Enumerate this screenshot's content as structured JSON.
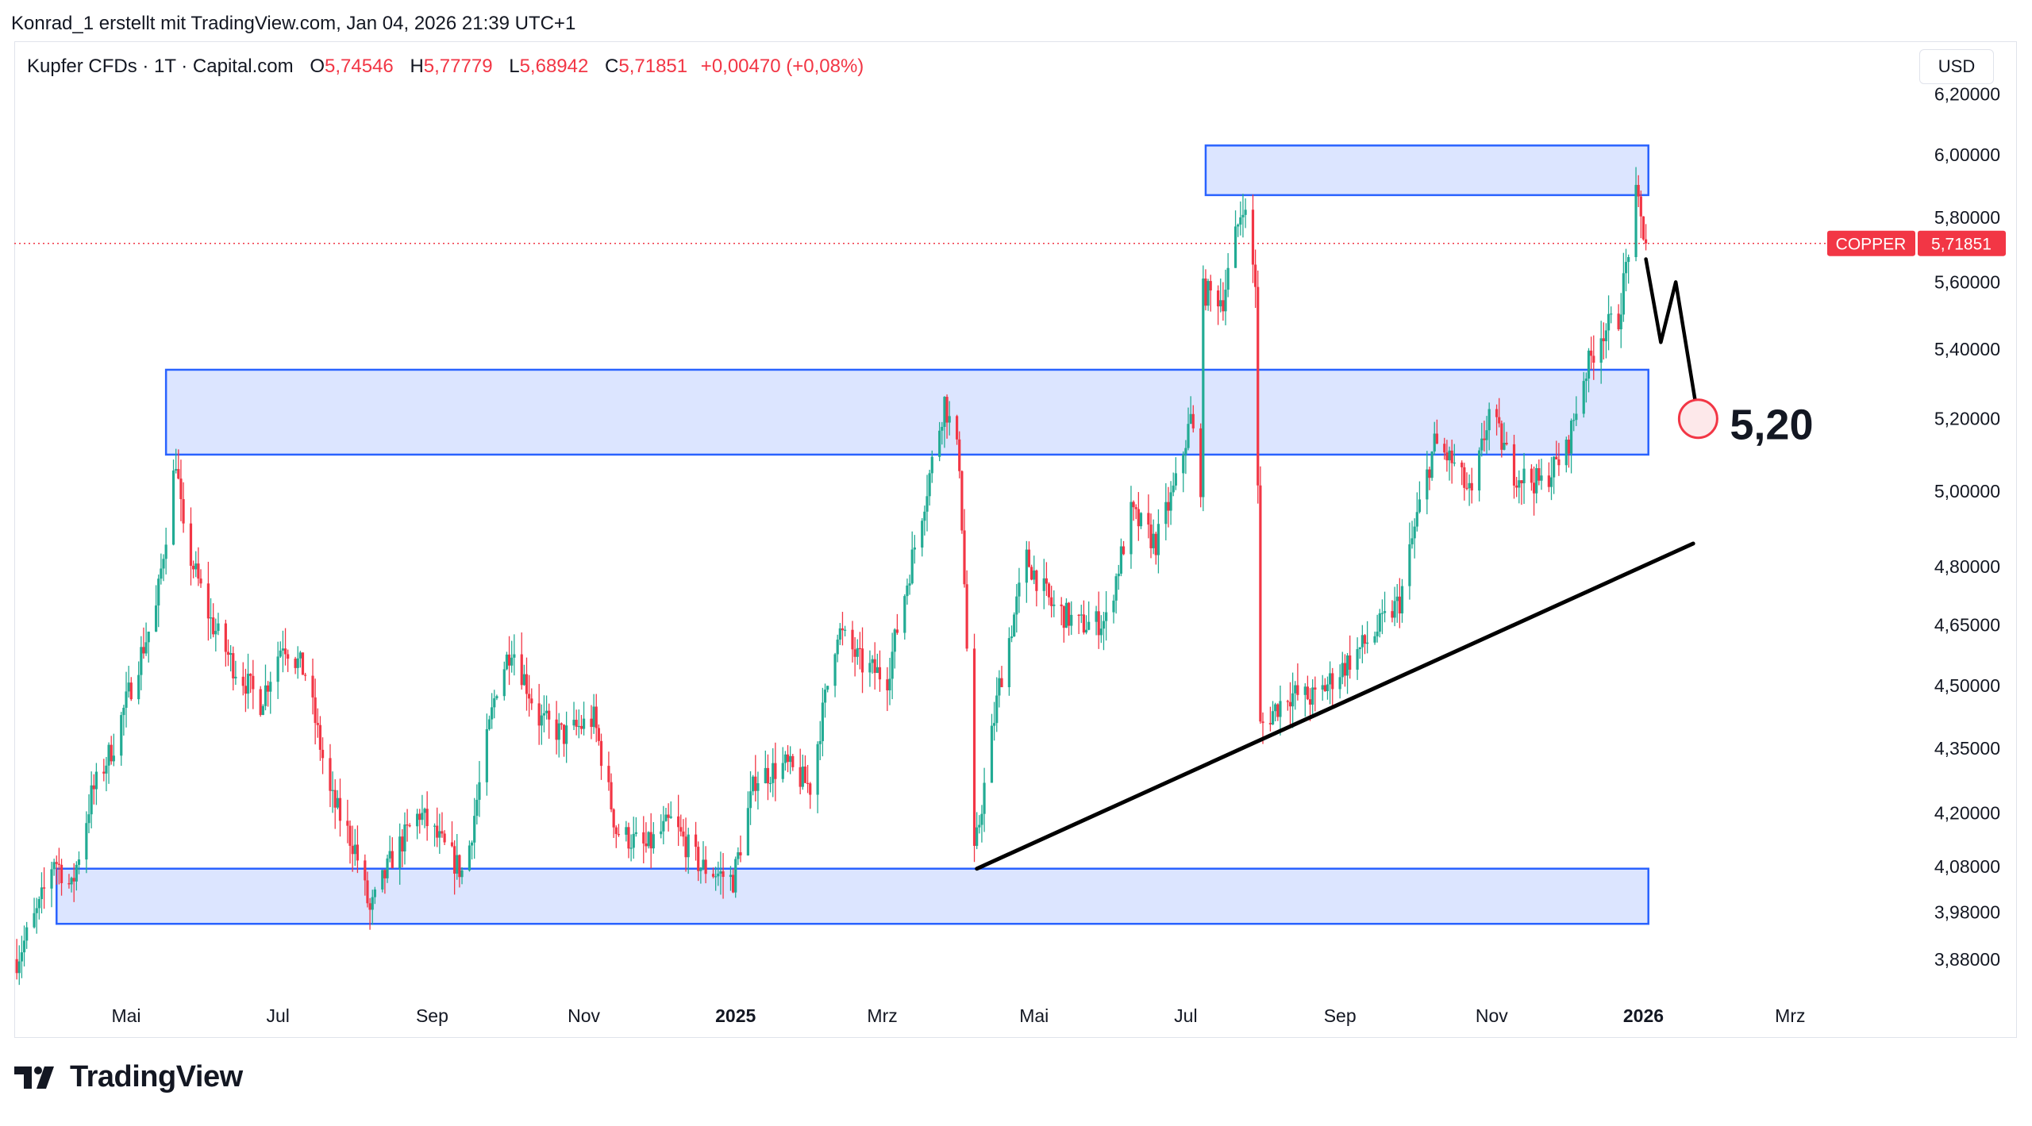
{
  "attribution": "Konrad_1 erstellt mit TradingView.com, Jan 04, 2026 21:39 UTC+1",
  "legend": {
    "symbol": "Kupfer CFDs · 1T · Capital.com",
    "open_label": "O",
    "open": "5,74546",
    "high_label": "H",
    "high": "5,77779",
    "low_label": "L",
    "low": "5,68942",
    "close_label": "C",
    "close": "5,71851",
    "change": "+0,00470 (+0,08%)"
  },
  "currency": "USD",
  "brand": "TradingView",
  "colors": {
    "up": "#22ab94",
    "down": "#f23645",
    "zone_fill": "#d6e0ff",
    "zone_border": "#2962ff",
    "trendline": "#000000"
  },
  "chart_data": {
    "type": "candlestick",
    "series_name": "COPPER",
    "last_price": 5.71851,
    "last_price_label": "5,71851",
    "price_tag_label": "COPPER",
    "y_scale": "log",
    "ylim": [
      3.82,
      6.25
    ],
    "y_ticks": [
      {
        "value": 6.2,
        "label": "6,20000"
      },
      {
        "value": 6.0,
        "label": "6,00000"
      },
      {
        "value": 5.8,
        "label": "5,80000"
      },
      {
        "value": 5.6,
        "label": "5,60000"
      },
      {
        "value": 5.4,
        "label": "5,40000"
      },
      {
        "value": 5.2,
        "label": "5,20000"
      },
      {
        "value": 5.0,
        "label": "5,00000"
      },
      {
        "value": 4.8,
        "label": "4,80000"
      },
      {
        "value": 4.65,
        "label": "4,65000"
      },
      {
        "value": 4.5,
        "label": "4,50000"
      },
      {
        "value": 4.35,
        "label": "4,35000"
      },
      {
        "value": 4.2,
        "label": "4,20000"
      },
      {
        "value": 4.08,
        "label": "4,08000"
      },
      {
        "value": 3.98,
        "label": "3,98000"
      },
      {
        "value": 3.88,
        "label": "3,88000"
      }
    ],
    "xlim": [
      "2024-03-17",
      "2026-04-20"
    ],
    "x_ticks": [
      {
        "date": "2024-05-01",
        "label": "Mai",
        "bold": false
      },
      {
        "date": "2024-07-01",
        "label": "Jul",
        "bold": false
      },
      {
        "date": "2024-09-01",
        "label": "Sep",
        "bold": false
      },
      {
        "date": "2024-11-01",
        "label": "Nov",
        "bold": false
      },
      {
        "date": "2025-01-01",
        "label": "2025",
        "bold": true
      },
      {
        "date": "2025-03-01",
        "label": "Mrz",
        "bold": false
      },
      {
        "date": "2025-05-01",
        "label": "Mai",
        "bold": false
      },
      {
        "date": "2025-07-01",
        "label": "Jul",
        "bold": false
      },
      {
        "date": "2025-09-01",
        "label": "Sep",
        "bold": false
      },
      {
        "date": "2025-11-01",
        "label": "Nov",
        "bold": false
      },
      {
        "date": "2026-01-01",
        "label": "2026",
        "bold": true
      },
      {
        "date": "2026-03-01",
        "label": "Mrz",
        "bold": false
      }
    ],
    "price_path": [
      [
        "2024-03-18",
        3.88
      ],
      [
        "2024-03-27",
        3.99
      ],
      [
        "2024-04-02",
        4.1
      ],
      [
        "2024-04-09",
        4.03
      ],
      [
        "2024-04-17",
        4.24
      ],
      [
        "2024-04-26",
        4.36
      ],
      [
        "2024-05-06",
        4.56
      ],
      [
        "2024-05-13",
        4.69
      ],
      [
        "2024-05-21",
        5.09
      ],
      [
        "2024-05-24",
        4.88
      ],
      [
        "2024-06-04",
        4.66
      ],
      [
        "2024-06-13",
        4.55
      ],
      [
        "2024-06-24",
        4.46
      ],
      [
        "2024-07-03",
        4.61
      ],
      [
        "2024-07-12",
        4.53
      ],
      [
        "2024-07-22",
        4.24
      ],
      [
        "2024-08-01",
        4.12
      ],
      [
        "2024-08-07",
        3.98
      ],
      [
        "2024-08-16",
        4.1
      ],
      [
        "2024-08-27",
        4.2
      ],
      [
        "2024-09-06",
        4.12
      ],
      [
        "2024-09-14",
        4.06
      ],
      [
        "2024-09-27",
        4.5
      ],
      [
        "2024-10-03",
        4.6
      ],
      [
        "2024-10-14",
        4.42
      ],
      [
        "2024-10-24",
        4.38
      ],
      [
        "2024-11-05",
        4.42
      ],
      [
        "2024-11-14",
        4.16
      ],
      [
        "2024-11-26",
        4.12
      ],
      [
        "2024-12-06",
        4.18
      ],
      [
        "2024-12-18",
        4.08
      ],
      [
        "2024-12-31",
        4.05
      ],
      [
        "2025-01-09",
        4.28
      ],
      [
        "2025-01-21",
        4.31
      ],
      [
        "2025-01-31",
        4.26
      ],
      [
        "2025-02-11",
        4.64
      ],
      [
        "2025-02-21",
        4.55
      ],
      [
        "2025-03-03",
        4.52
      ],
      [
        "2025-03-11",
        4.76
      ],
      [
        "2025-03-19",
        5.01
      ],
      [
        "2025-03-26",
        5.25
      ],
      [
        "2025-04-01",
        5.08
      ],
      [
        "2025-04-07",
        4.1
      ],
      [
        "2025-04-17",
        4.5
      ],
      [
        "2025-04-28",
        4.82
      ],
      [
        "2025-05-08",
        4.7
      ],
      [
        "2025-05-19",
        4.65
      ],
      [
        "2025-05-30",
        4.66
      ],
      [
        "2025-06-09",
        4.94
      ],
      [
        "2025-06-19",
        4.86
      ],
      [
        "2025-06-27",
        5.02
      ],
      [
        "2025-07-03",
        5.2
      ],
      [
        "2025-07-07",
        5.02
      ],
      [
        "2025-07-08",
        5.57
      ],
      [
        "2025-07-16",
        5.55
      ],
      [
        "2025-07-24",
        5.85
      ],
      [
        "2025-07-29",
        5.6
      ],
      [
        "2025-07-31",
        4.4
      ],
      [
        "2025-08-11",
        4.48
      ],
      [
        "2025-08-22",
        4.47
      ],
      [
        "2025-09-03",
        4.55
      ],
      [
        "2025-09-15",
        4.63
      ],
      [
        "2025-09-25",
        4.71
      ],
      [
        "2025-10-02",
        4.93
      ],
      [
        "2025-10-09",
        5.13
      ],
      [
        "2025-10-16",
        5.08
      ],
      [
        "2025-10-24",
        4.98
      ],
      [
        "2025-10-31",
        5.22
      ],
      [
        "2025-11-10",
        5.05
      ],
      [
        "2025-11-21",
        5.02
      ],
      [
        "2025-12-01",
        5.11
      ],
      [
        "2025-12-08",
        5.32
      ],
      [
        "2025-12-15",
        5.45
      ],
      [
        "2025-12-22",
        5.49
      ],
      [
        "2025-12-29",
        5.86
      ],
      [
        "2026-01-02",
        5.72
      ]
    ],
    "zones": [
      {
        "from": "2024-04-03",
        "to": "2026-01-03",
        "low": 3.955,
        "high": 4.075
      },
      {
        "from": "2024-05-17",
        "to": "2026-01-03",
        "low": 5.1,
        "high": 5.34
      },
      {
        "from": "2025-07-09",
        "to": "2026-01-03",
        "low": 5.87,
        "high": 6.03
      }
    ],
    "trendline": [
      [
        "2025-04-08",
        4.075
      ],
      [
        "2026-01-21",
        4.86
      ]
    ],
    "projection": [
      [
        "2026-01-02",
        5.67
      ],
      [
        "2026-01-08",
        5.42
      ],
      [
        "2026-01-14",
        5.6
      ],
      [
        "2026-01-23",
        5.2
      ]
    ],
    "target": {
      "date": "2026-01-23",
      "value": 5.2,
      "label": "5,20"
    }
  }
}
